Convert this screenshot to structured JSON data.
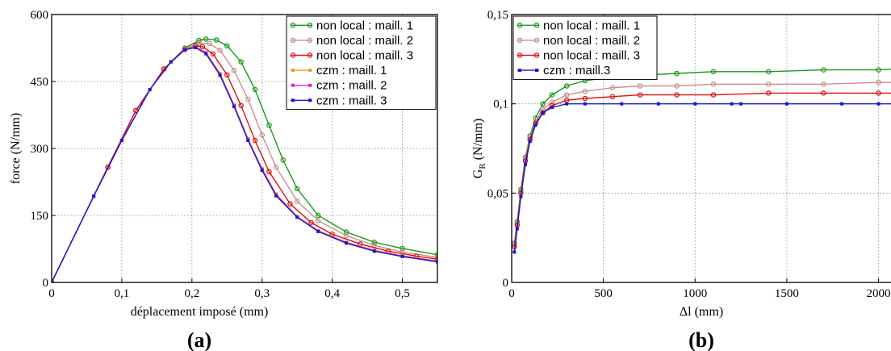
{
  "panel_labels": {
    "a": "(a)",
    "b": "(b)"
  },
  "chart_data": [
    {
      "type": "line",
      "panel": "(a)",
      "xlabel": "déplacement imposé (mm)",
      "ylabel": "force (N/mm)",
      "xlim": [
        0,
        0.55
      ],
      "ylim": [
        0,
        600
      ],
      "xticks": [
        0,
        0.1,
        0.2,
        0.3,
        0.4,
        0.5
      ],
      "xtick_labels": [
        "0",
        "0,1",
        "0,2",
        "0,3",
        "0,4",
        "0,5"
      ],
      "yticks": [
        0,
        150,
        300,
        450,
        600
      ],
      "ytick_labels": [
        "0",
        "150",
        "300",
        "450",
        "600"
      ],
      "grid": true,
      "legend_position": "top-right",
      "series": [
        {
          "name": "non local : maill. 1",
          "color": "#1a9a1a",
          "marker": "circle",
          "x": [
            0,
            0.08,
            0.12,
            0.16,
            0.19,
            0.21,
            0.22,
            0.235,
            0.25,
            0.27,
            0.29,
            0.31,
            0.33,
            0.35,
            0.38,
            0.42,
            0.46,
            0.5,
            0.55
          ],
          "y": [
            0,
            258,
            385,
            478,
            525,
            542,
            545,
            543,
            530,
            494,
            432,
            352,
            274,
            210,
            150,
            113,
            90,
            76,
            62
          ]
        },
        {
          "name": "non local : maill. 2",
          "color": "#c89090",
          "marker": "circle",
          "x": [
            0,
            0.08,
            0.12,
            0.16,
            0.19,
            0.21,
            0.225,
            0.24,
            0.26,
            0.28,
            0.3,
            0.32,
            0.35,
            0.38,
            0.42,
            0.46,
            0.5,
            0.55
          ],
          "y": [
            0,
            258,
            385,
            478,
            523,
            536,
            535,
            520,
            475,
            410,
            330,
            258,
            182,
            138,
            105,
            83,
            68,
            56
          ]
        },
        {
          "name": "non local : maill. 3",
          "color": "#dd1111",
          "marker": "circle",
          "x": [
            0,
            0.08,
            0.12,
            0.16,
            0.19,
            0.205,
            0.215,
            0.23,
            0.25,
            0.27,
            0.29,
            0.31,
            0.34,
            0.37,
            0.4,
            0.44,
            0.48,
            0.52,
            0.55
          ],
          "y": [
            0,
            258,
            385,
            478,
            522,
            530,
            528,
            512,
            465,
            396,
            318,
            248,
            176,
            134,
            108,
            86,
            70,
            59,
            52
          ]
        },
        {
          "name": "czm : maill. 1",
          "color": "#f0a020",
          "marker": "square",
          "x": [
            0,
            0.06,
            0.1,
            0.14,
            0.17,
            0.19,
            0.205,
            0.22,
            0.24,
            0.26,
            0.28,
            0.3,
            0.32,
            0.35,
            0.38,
            0.42,
            0.46,
            0.5,
            0.55
          ],
          "y": [
            0,
            193,
            318,
            432,
            494,
            523,
            528,
            515,
            468,
            398,
            322,
            255,
            198,
            148,
            116,
            90,
            72,
            60,
            48
          ]
        },
        {
          "name": "czm : maill. 2",
          "color": "#ee22cc",
          "marker": "square",
          "x": [
            0,
            0.06,
            0.1,
            0.14,
            0.17,
            0.19,
            0.205,
            0.22,
            0.24,
            0.26,
            0.28,
            0.3,
            0.32,
            0.35,
            0.38,
            0.42,
            0.46,
            0.5,
            0.55
          ],
          "y": [
            0,
            193,
            318,
            432,
            494,
            522,
            527,
            514,
            466,
            396,
            320,
            253,
            196,
            147,
            115,
            89,
            71,
            59,
            47
          ]
        },
        {
          "name": "czm : maill. 3",
          "color": "#1a1ad0",
          "marker": "square",
          "x": [
            0,
            0.06,
            0.1,
            0.14,
            0.17,
            0.19,
            0.205,
            0.22,
            0.24,
            0.26,
            0.28,
            0.3,
            0.32,
            0.35,
            0.38,
            0.42,
            0.46,
            0.5,
            0.55
          ],
          "y": [
            0,
            193,
            318,
            432,
            494,
            521,
            526,
            512,
            464,
            394,
            318,
            251,
            194,
            146,
            114,
            88,
            70,
            58,
            46
          ]
        }
      ]
    },
    {
      "type": "line",
      "panel": "(b)",
      "xlabel": "Δl (mm)",
      "ylabel": "G",
      "ylabel_sub": "R",
      "ylabel_unit": " (N/mm)",
      "xlim": [
        0,
        2200
      ],
      "ylim": [
        0,
        0.15
      ],
      "xticks": [
        0,
        500,
        1000,
        1500,
        2000
      ],
      "xtick_labels": [
        "0",
        "500",
        "1000",
        "1500",
        "2000"
      ],
      "yticks": [
        0,
        0.05,
        0.1,
        0.15
      ],
      "ytick_labels": [
        "0",
        "0,05",
        "0,1",
        "0,15"
      ],
      "grid": true,
      "legend_position": "top-left",
      "series": [
        {
          "name": "non local : maill. 1",
          "color": "#1a9a1a",
          "marker": "circle",
          "x": [
            15,
            30,
            50,
            75,
            100,
            130,
            170,
            220,
            300,
            400,
            550,
            700,
            900,
            1100,
            1400,
            1700,
            2000,
            2200
          ],
          "y": [
            0.022,
            0.034,
            0.052,
            0.07,
            0.082,
            0.092,
            0.1,
            0.105,
            0.11,
            0.113,
            0.115,
            0.116,
            0.117,
            0.118,
            0.118,
            0.119,
            0.119,
            0.12
          ]
        },
        {
          "name": "non local : maill. 2",
          "color": "#c89090",
          "marker": "circle",
          "x": [
            15,
            30,
            50,
            75,
            100,
            130,
            170,
            220,
            300,
            400,
            550,
            700,
            900,
            1100,
            1400,
            1700,
            2000,
            2200
          ],
          "y": [
            0.021,
            0.033,
            0.051,
            0.069,
            0.081,
            0.09,
            0.097,
            0.101,
            0.105,
            0.107,
            0.109,
            0.11,
            0.11,
            0.111,
            0.111,
            0.111,
            0.112,
            0.112
          ]
        },
        {
          "name": "non local : maill. 3",
          "color": "#dd1111",
          "marker": "circle",
          "x": [
            15,
            30,
            50,
            75,
            100,
            130,
            170,
            220,
            300,
            400,
            550,
            700,
            900,
            1100,
            1400,
            1700,
            2000,
            2200
          ],
          "y": [
            0.02,
            0.032,
            0.05,
            0.068,
            0.08,
            0.089,
            0.095,
            0.099,
            0.102,
            0.103,
            0.104,
            0.105,
            0.105,
            0.105,
            0.106,
            0.106,
            0.106,
            0.106
          ]
        },
        {
          "name": "czm : maill.3",
          "color": "#1a1ad0",
          "marker": "square",
          "x": [
            15,
            30,
            50,
            75,
            100,
            130,
            170,
            220,
            300,
            400,
            600,
            800,
            1000,
            1200,
            1250,
            1500,
            1800,
            2000,
            2200
          ],
          "y": [
            0.017,
            0.03,
            0.048,
            0.066,
            0.079,
            0.088,
            0.095,
            0.098,
            0.1,
            0.1,
            0.1,
            0.1,
            0.1,
            0.1,
            0.1,
            0.1,
            0.1,
            0.1,
            0.1
          ]
        }
      ]
    }
  ]
}
